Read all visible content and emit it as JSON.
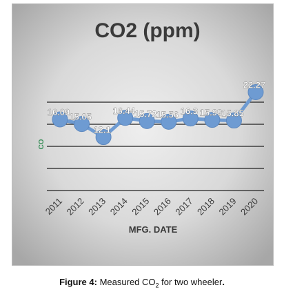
{
  "chart_data": {
    "type": "line",
    "title": "CO2 (ppm)",
    "xlabel": "MFG. DATE",
    "ylabel": "CO",
    "categories": [
      "2011",
      "2012",
      "2013",
      "2014",
      "2015",
      "2016",
      "2017",
      "2018",
      "2019",
      "2020"
    ],
    "series": [
      {
        "values": [
          16.09,
          15.05,
          12.1,
          16.44,
          15.72,
          15.56,
          16.3,
          15.99,
          15.85,
          22.27
        ],
        "labels": [
          "16.09",
          "15.05",
          "12.1",
          "16.44",
          "15.72",
          "15.56",
          "16.3",
          "15.99",
          "15.85",
          "22.27"
        ]
      }
    ],
    "ylim": [
      0,
      25
    ],
    "grid": true,
    "legend": "none",
    "colors": {
      "background_light": "#e6e6e6",
      "background_dark": "#a9a9a9",
      "line": "#6e9bd2",
      "marker": "#6e9bd2",
      "gridline": "#222222",
      "title": "#3a3a3a",
      "label": "#ffffff"
    }
  },
  "caption": {
    "figure": "Figure 4:",
    "text_before": "Measured CO",
    "subscript": "2",
    "text_after": "for two wheeler",
    "period": "."
  }
}
